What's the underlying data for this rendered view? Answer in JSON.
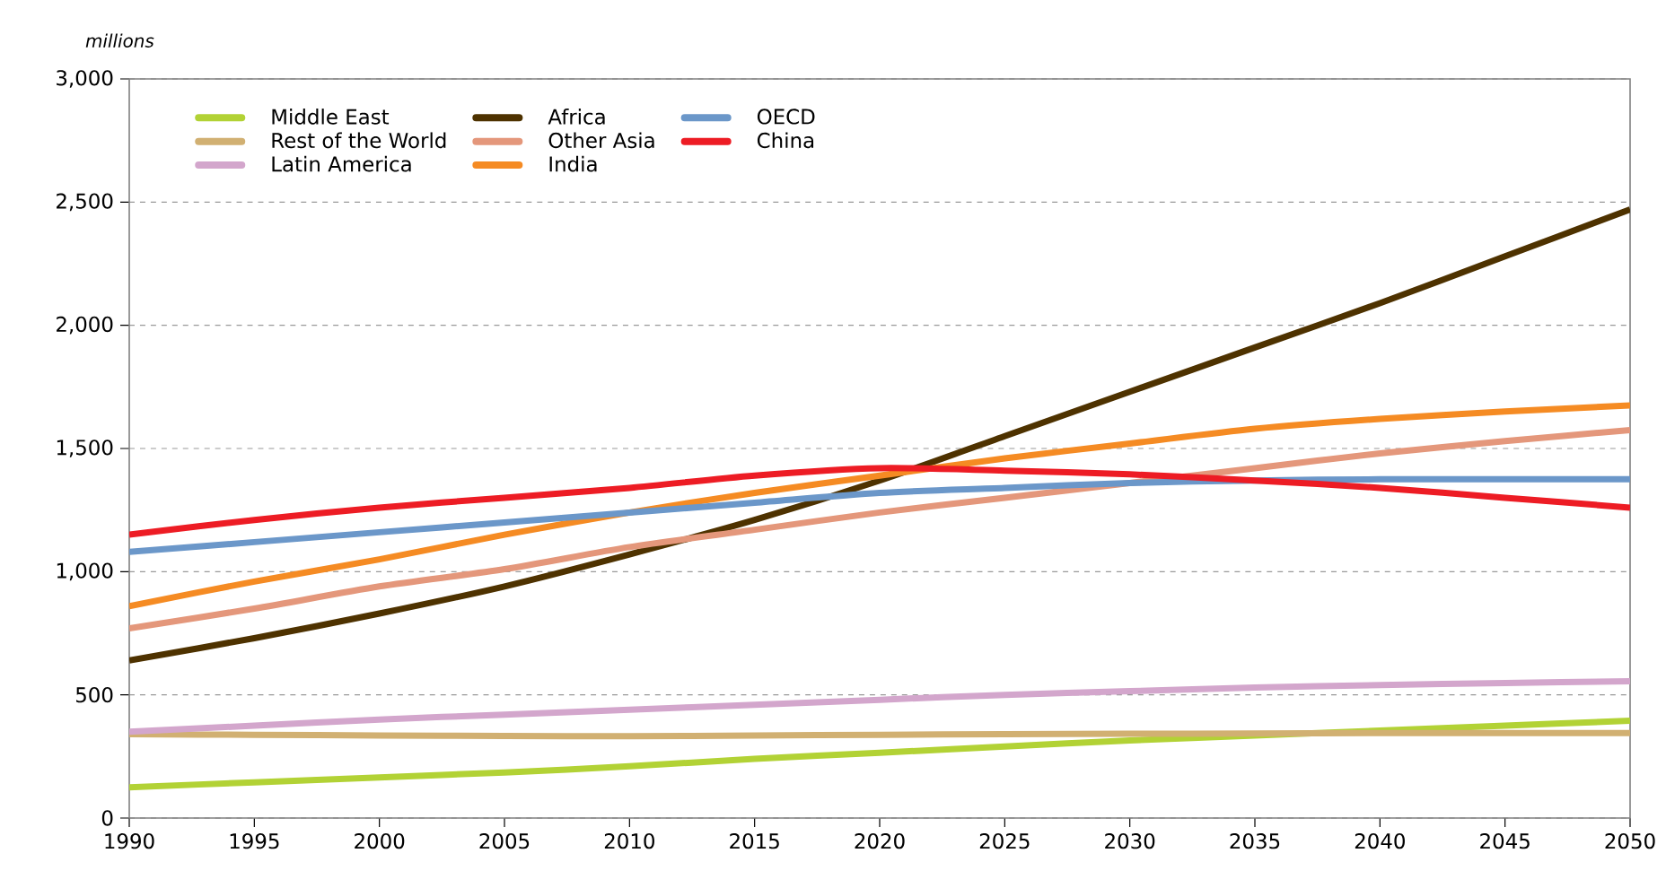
{
  "chart_data": {
    "type": "line",
    "ylabel": "millions",
    "x": [
      1990,
      1995,
      2000,
      2005,
      2010,
      2015,
      2020,
      2025,
      2030,
      2035,
      2040,
      2045,
      2050
    ],
    "xlim": [
      1990,
      2050
    ],
    "xticks": [
      1990,
      1995,
      2000,
      2005,
      2010,
      2015,
      2020,
      2025,
      2030,
      2035,
      2040,
      2045,
      2050
    ],
    "ylim": [
      0,
      3000
    ],
    "yticks": [
      0,
      {
        "value": 500,
        "label": "500"
      },
      {
        "value": 1000,
        "label": "1,000"
      },
      {
        "value": 1500,
        "label": "1,500"
      },
      {
        "value": 2000,
        "label": "2,000"
      },
      {
        "value": 2500,
        "label": "2,500"
      },
      {
        "value": 3000,
        "label": "3,000"
      }
    ],
    "grid": "y",
    "legend": "top left",
    "marker": "none",
    "line_style": "solid",
    "series": [
      {
        "name": "Middle East",
        "color": "#b2d235",
        "values": [
          125,
          145,
          165,
          185,
          210,
          240,
          265,
          290,
          315,
          335,
          355,
          375,
          395
        ]
      },
      {
        "name": "Rest of the World",
        "color": "#d1b072",
        "values": [
          340,
          338,
          335,
          333,
          332,
          335,
          338,
          340,
          342,
          343,
          345,
          345,
          345
        ]
      },
      {
        "name": "Latin America",
        "color": "#d3a6cc",
        "values": [
          350,
          375,
          400,
          420,
          440,
          460,
          480,
          500,
          515,
          530,
          540,
          548,
          555
        ]
      },
      {
        "name": "Africa",
        "color": "#4e3200",
        "values": [
          640,
          730,
          830,
          940,
          1070,
          1210,
          1370,
          1550,
          1730,
          1910,
          2090,
          2280,
          2470
        ]
      },
      {
        "name": "Other Asia",
        "color": "#e4977b",
        "values": [
          770,
          850,
          940,
          1010,
          1100,
          1170,
          1240,
          1300,
          1360,
          1420,
          1480,
          1530,
          1575
        ]
      },
      {
        "name": "India",
        "color": "#f58b23",
        "values": [
          860,
          960,
          1050,
          1150,
          1240,
          1320,
          1390,
          1460,
          1520,
          1580,
          1620,
          1650,
          1675
        ]
      },
      {
        "name": "OECD",
        "color": "#6b97c9",
        "values": [
          1080,
          1120,
          1160,
          1200,
          1240,
          1280,
          1320,
          1340,
          1360,
          1370,
          1375,
          1375,
          1375
        ]
      },
      {
        "name": "China",
        "color": "#ed1c24",
        "values": [
          1150,
          1210,
          1260,
          1300,
          1340,
          1390,
          1420,
          1410,
          1395,
          1370,
          1340,
          1300,
          1260
        ]
      }
    ]
  }
}
